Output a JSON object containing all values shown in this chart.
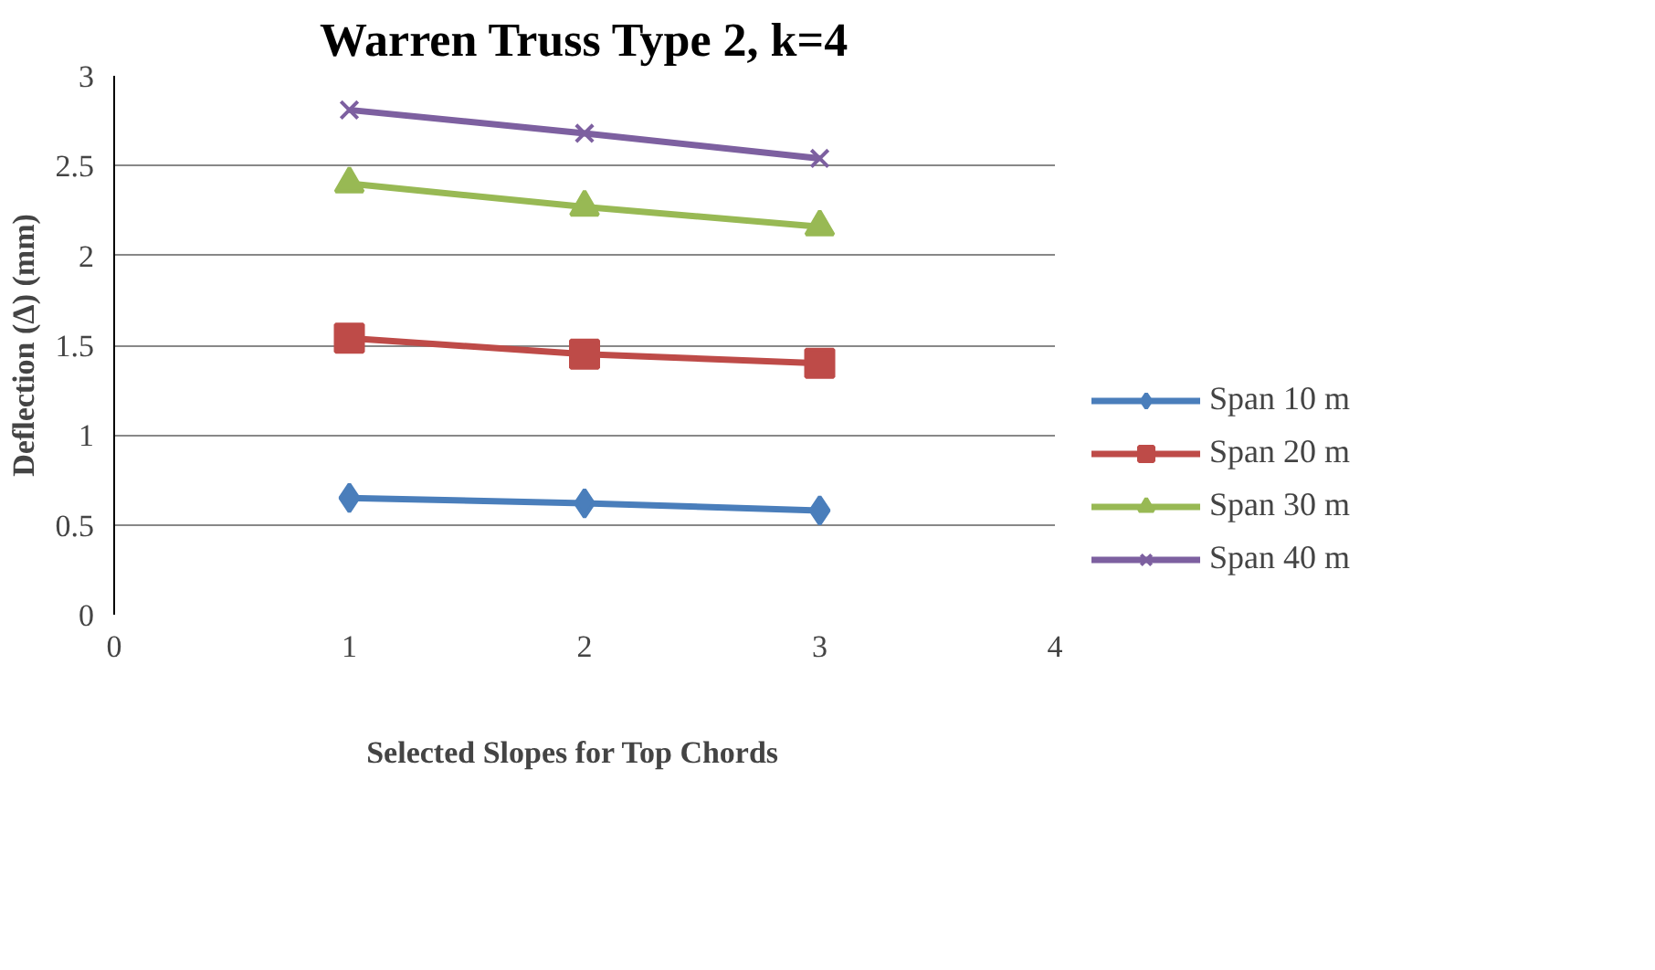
{
  "chart_data": {
    "type": "line",
    "title": "Warren Truss Type 2, k=4",
    "xlabel": "Selected  Slopes  for  Top Chords",
    "ylabel": "Deflection (Δ) (mm)",
    "x": [
      1,
      2,
      3
    ],
    "xlim": [
      0,
      4
    ],
    "xticks": [
      0,
      1,
      2,
      3,
      4
    ],
    "ylim": [
      0,
      3
    ],
    "yticks": [
      0,
      0.5,
      1,
      1.5,
      2,
      2.5,
      3
    ],
    "grid": "y",
    "legend": "right",
    "series": [
      {
        "name": "Span 10 m",
        "color": "#4a7ebb",
        "marker": "diamond",
        "values": [
          0.65,
          0.62,
          0.58
        ]
      },
      {
        "name": "Span 20 m",
        "color": "#be4b48",
        "marker": "square",
        "values": [
          1.54,
          1.45,
          1.4
        ]
      },
      {
        "name": "Span 30 m",
        "color": "#98b954",
        "marker": "triangle",
        "values": [
          2.4,
          2.27,
          2.16
        ]
      },
      {
        "name": "Span 40 m",
        "color": "#7d60a0",
        "marker": "x",
        "values": [
          2.81,
          2.68,
          2.54
        ]
      }
    ]
  }
}
